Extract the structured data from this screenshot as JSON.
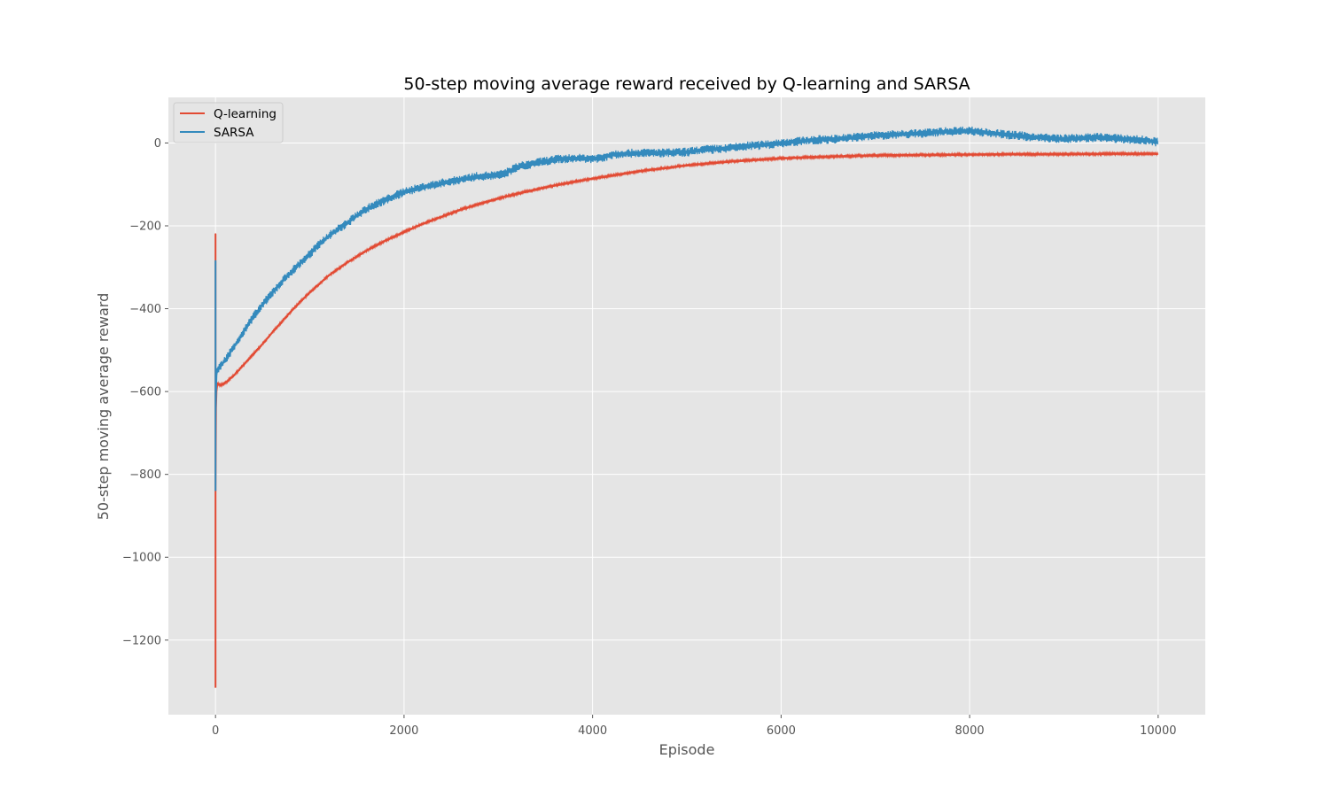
{
  "chart_data": {
    "type": "line",
    "title": "50-step moving average reward received by Q-learning and SARSA",
    "xlabel": "Episode",
    "ylabel": "50-step moving average reward",
    "xlim": [
      -500,
      10500
    ],
    "ylim": [
      -1380,
      110
    ],
    "xticks": [
      0,
      2000,
      4000,
      6000,
      8000,
      10000
    ],
    "yticks": [
      0,
      -200,
      -400,
      -600,
      -800,
      -1000,
      -1200
    ],
    "grid": true,
    "legend_position": "top-left",
    "colors": {
      "background": "#e5e5e5",
      "grid": "#ffffff",
      "q_learning": "#e24a33",
      "sarsa": "#348abd"
    },
    "series": [
      {
        "name": "Q-learning",
        "color": "#e24a33",
        "noise_band": 6,
        "points": [
          [
            0,
            -1315
          ],
          [
            0,
            -220
          ],
          [
            0,
            -840
          ],
          [
            5,
            -640
          ],
          [
            10,
            -600
          ],
          [
            20,
            -580
          ],
          [
            50,
            -585
          ],
          [
            100,
            -580
          ],
          [
            200,
            -560
          ],
          [
            300,
            -535
          ],
          [
            400,
            -510
          ],
          [
            500,
            -485
          ],
          [
            600,
            -458
          ],
          [
            700,
            -432
          ],
          [
            800,
            -407
          ],
          [
            900,
            -383
          ],
          [
            1000,
            -361
          ],
          [
            1200,
            -320
          ],
          [
            1400,
            -288
          ],
          [
            1600,
            -260
          ],
          [
            1800,
            -236
          ],
          [
            2000,
            -215
          ],
          [
            2200,
            -195
          ],
          [
            2400,
            -178
          ],
          [
            2600,
            -161
          ],
          [
            2800,
            -147
          ],
          [
            3000,
            -134
          ],
          [
            3250,
            -120
          ],
          [
            3500,
            -107
          ],
          [
            3750,
            -96
          ],
          [
            4000,
            -86
          ],
          [
            4250,
            -77
          ],
          [
            4500,
            -68
          ],
          [
            4750,
            -61
          ],
          [
            5000,
            -54
          ],
          [
            5500,
            -44
          ],
          [
            6000,
            -37
          ],
          [
            6500,
            -33
          ],
          [
            7000,
            -30
          ],
          [
            7500,
            -29
          ],
          [
            8000,
            -28
          ],
          [
            8500,
            -27
          ],
          [
            9000,
            -27
          ],
          [
            9500,
            -26
          ],
          [
            10000,
            -26
          ]
        ]
      },
      {
        "name": "SARSA",
        "color": "#348abd",
        "noise_band": 22,
        "points": [
          [
            0,
            -840
          ],
          [
            0,
            -285
          ],
          [
            0,
            -660
          ],
          [
            5,
            -600
          ],
          [
            10,
            -560
          ],
          [
            20,
            -545
          ],
          [
            50,
            -540
          ],
          [
            100,
            -525
          ],
          [
            200,
            -490
          ],
          [
            300,
            -455
          ],
          [
            400,
            -420
          ],
          [
            500,
            -390
          ],
          [
            600,
            -362
          ],
          [
            700,
            -336
          ],
          [
            800,
            -312
          ],
          [
            900,
            -290
          ],
          [
            1000,
            -268
          ],
          [
            1100,
            -245
          ],
          [
            1200,
            -225
          ],
          [
            1300,
            -208
          ],
          [
            1400,
            -193
          ],
          [
            1500,
            -175
          ],
          [
            1600,
            -160
          ],
          [
            1700,
            -148
          ],
          [
            1800,
            -138
          ],
          [
            1900,
            -128
          ],
          [
            2000,
            -118
          ],
          [
            2200,
            -107
          ],
          [
            2400,
            -97
          ],
          [
            2600,
            -88
          ],
          [
            2800,
            -80
          ],
          [
            3000,
            -78
          ],
          [
            3100,
            -70
          ],
          [
            3200,
            -58
          ],
          [
            3400,
            -48
          ],
          [
            3600,
            -40
          ],
          [
            3800,
            -37
          ],
          [
            4000,
            -38
          ],
          [
            4100,
            -36
          ],
          [
            4200,
            -28
          ],
          [
            4400,
            -25
          ],
          [
            4600,
            -24
          ],
          [
            4800,
            -24
          ],
          [
            5000,
            -22
          ],
          [
            5200,
            -16
          ],
          [
            5400,
            -14
          ],
          [
            5600,
            -8
          ],
          [
            5800,
            -5
          ],
          [
            6000,
            0
          ],
          [
            6200,
            4
          ],
          [
            6400,
            8
          ],
          [
            6600,
            10
          ],
          [
            6800,
            14
          ],
          [
            7000,
            18
          ],
          [
            7200,
            20
          ],
          [
            7400,
            22
          ],
          [
            7600,
            25
          ],
          [
            7800,
            28
          ],
          [
            8000,
            30
          ],
          [
            8200,
            24
          ],
          [
            8400,
            20
          ],
          [
            8600,
            16
          ],
          [
            8800,
            12
          ],
          [
            9000,
            10
          ],
          [
            9200,
            12
          ],
          [
            9400,
            14
          ],
          [
            9600,
            10
          ],
          [
            9800,
            8
          ],
          [
            10000,
            2
          ]
        ]
      }
    ]
  }
}
